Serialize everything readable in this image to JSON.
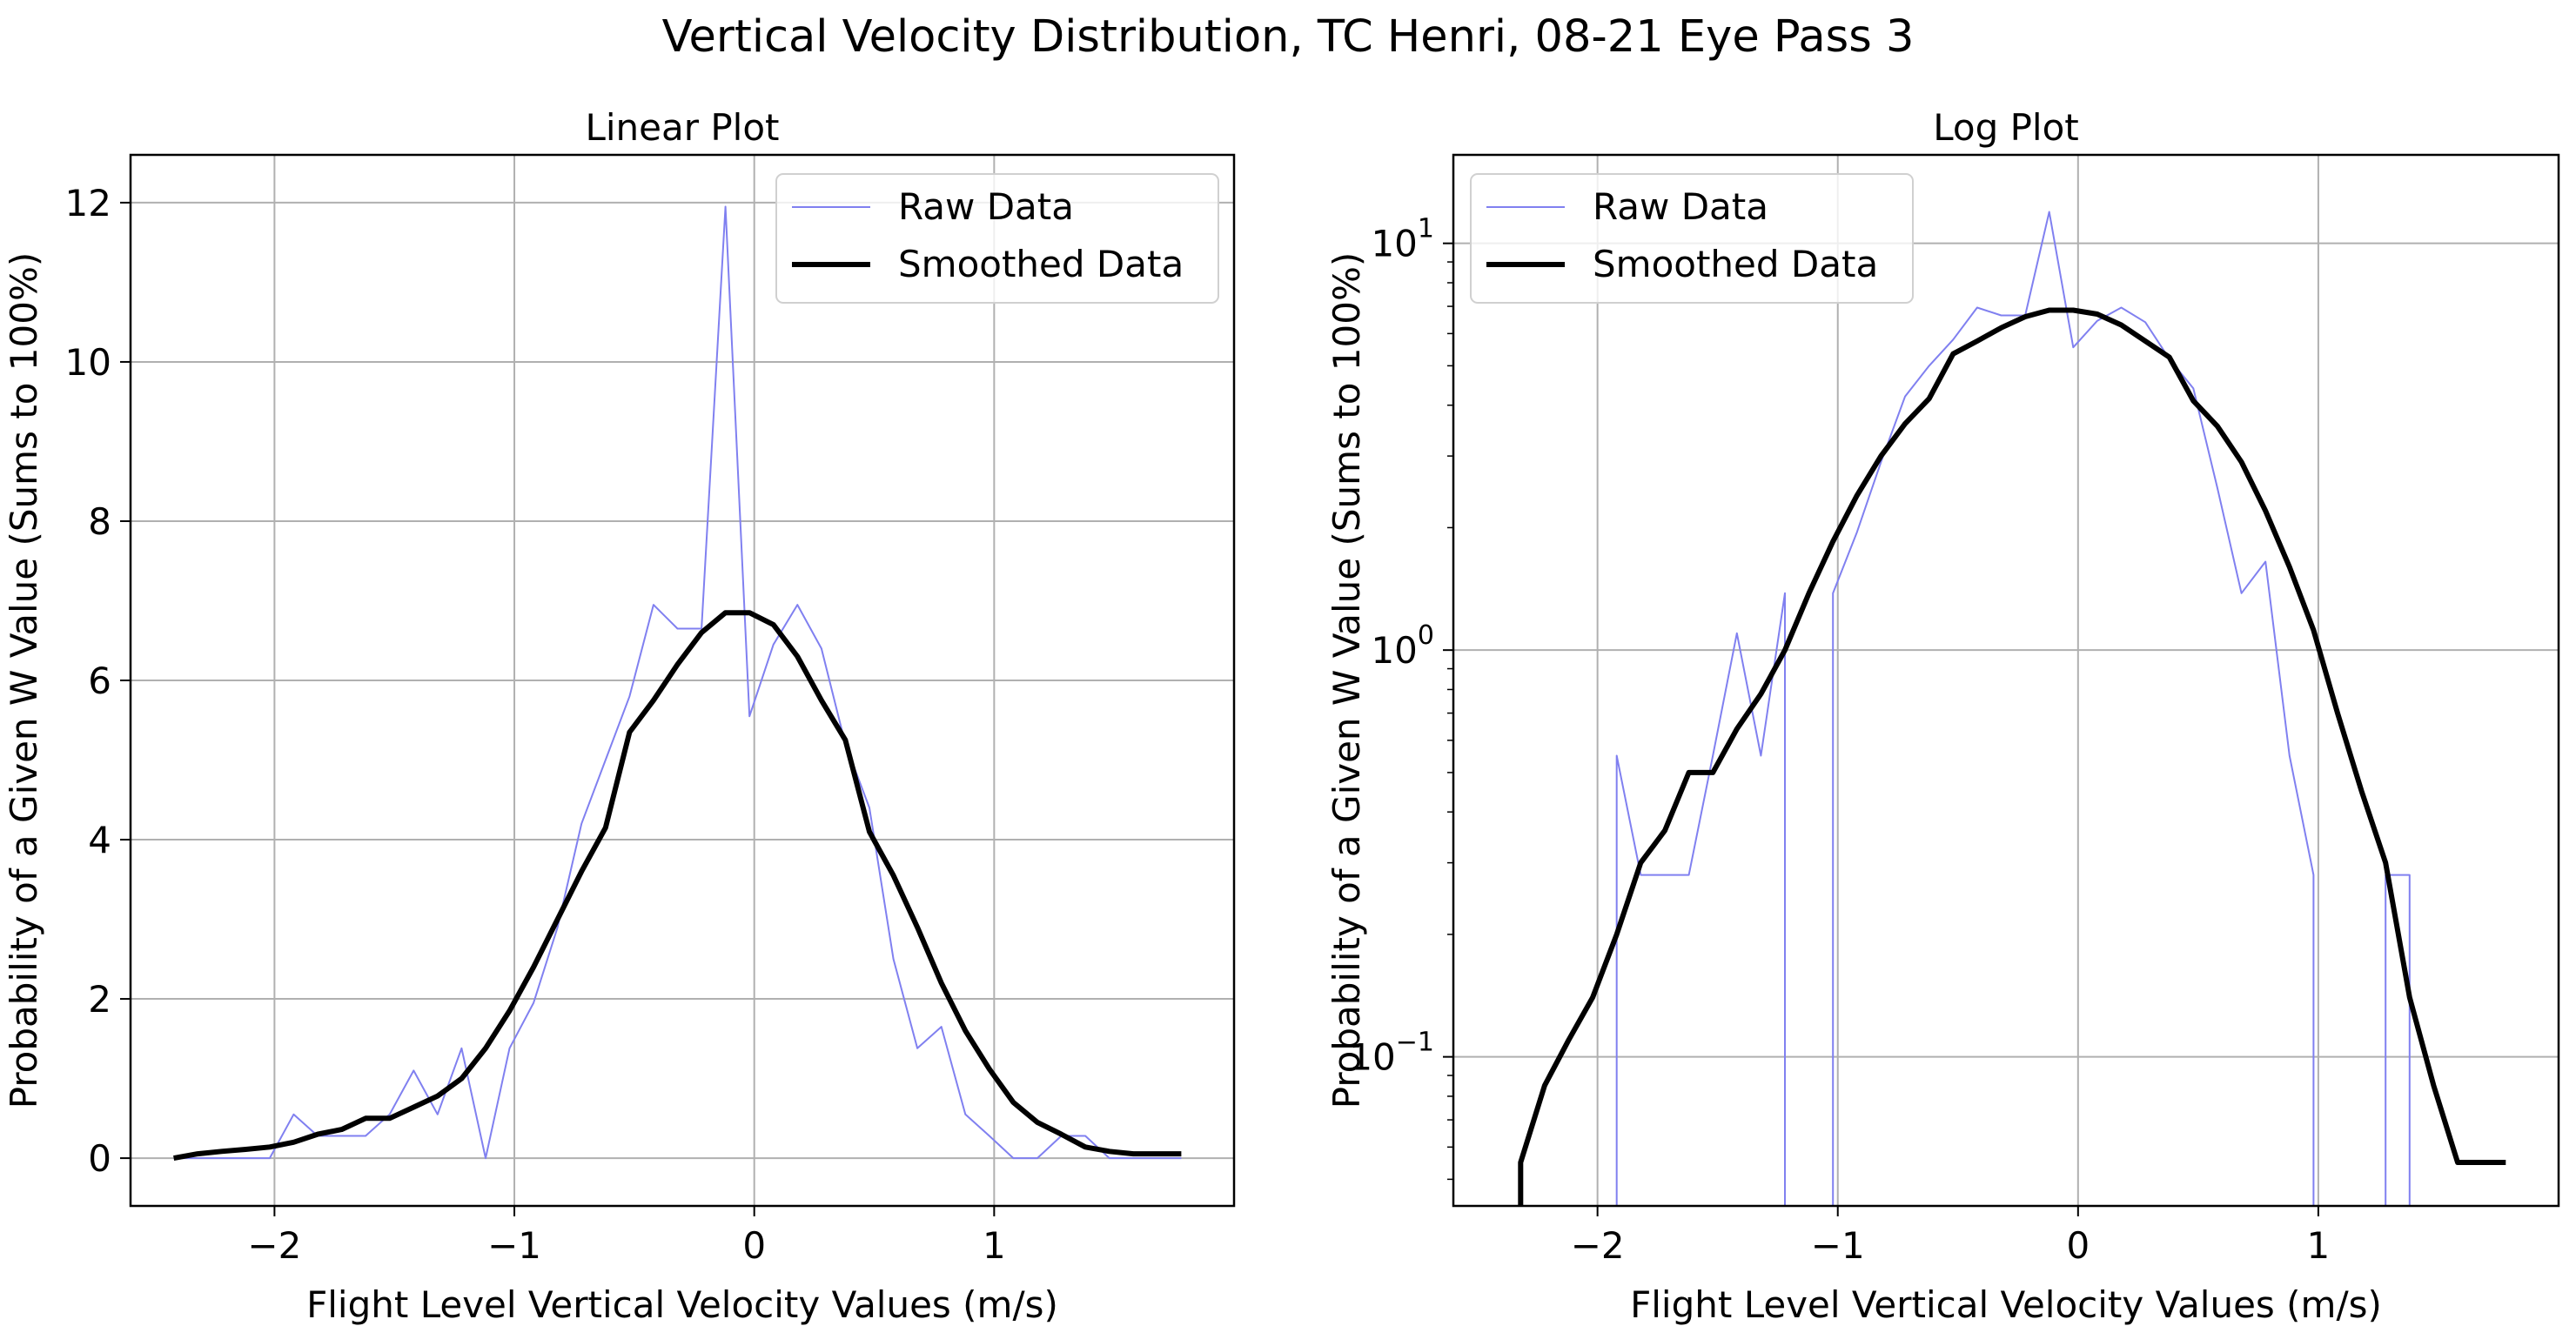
{
  "figure_title": "Vertical Velocity Distribution, TC Henri, 08-21 Eye Pass 3",
  "chart_data": [
    {
      "type": "line",
      "title": "Linear Plot",
      "xlabel": "Flight Level Vertical Velocity Values (m/s)",
      "ylabel": "Probability of a Given W Value (Sums to 100%)",
      "xlim": [
        -2.6,
        2.0
      ],
      "ylim": [
        -0.6,
        12.6
      ],
      "yscale": "linear",
      "grid": true,
      "legend_position": "upper right",
      "xticks": [
        {
          "v": -2,
          "label": "−2"
        },
        {
          "v": -1,
          "label": "−1"
        },
        {
          "v": 0,
          "label": "0"
        },
        {
          "v": 1,
          "label": "1"
        }
      ],
      "yticks": [
        {
          "v": 0,
          "label": "0"
        },
        {
          "v": 2,
          "label": "2"
        },
        {
          "v": 4,
          "label": "4"
        },
        {
          "v": 6,
          "label": "6"
        },
        {
          "v": 8,
          "label": "8"
        },
        {
          "v": 10,
          "label": "10"
        },
        {
          "v": 12,
          "label": "12"
        }
      ],
      "series": [
        {
          "name": "Raw Data",
          "color": "#8080f0",
          "width": 2,
          "x": [
            -2.42,
            -2.32,
            -2.22,
            -2.12,
            -2.02,
            -1.92,
            -1.82,
            -1.72,
            -1.62,
            -1.52,
            -1.42,
            -1.32,
            -1.22,
            -1.12,
            -1.02,
            -0.92,
            -0.82,
            -0.72,
            -0.62,
            -0.52,
            -0.42,
            -0.32,
            -0.22,
            -0.12,
            -0.02,
            0.08,
            0.18,
            0.28,
            0.38,
            0.48,
            0.58,
            0.68,
            0.78,
            0.88,
            0.98,
            1.08,
            1.18,
            1.28,
            1.38,
            1.48,
            1.58,
            1.68,
            1.78
          ],
          "y": [
            0.0,
            0.0,
            0.0,
            0.0,
            0.0,
            0.55,
            0.28,
            0.28,
            0.28,
            0.55,
            1.1,
            0.55,
            1.38,
            0.0,
            1.38,
            1.95,
            2.9,
            4.2,
            5.0,
            5.8,
            6.95,
            6.65,
            6.65,
            11.95,
            5.55,
            6.45,
            6.95,
            6.4,
            5.2,
            4.4,
            2.5,
            1.38,
            1.65,
            0.55,
            0.28,
            0.0,
            0.0,
            0.28,
            0.28,
            0.0,
            0.0,
            0.0,
            0.0
          ]
        },
        {
          "name": "Smoothed Data",
          "color": "#000000",
          "width": 6,
          "x": [
            -2.42,
            -2.32,
            -2.22,
            -2.12,
            -2.02,
            -1.92,
            -1.82,
            -1.72,
            -1.62,
            -1.52,
            -1.42,
            -1.32,
            -1.22,
            -1.12,
            -1.02,
            -0.92,
            -0.82,
            -0.72,
            -0.62,
            -0.52,
            -0.42,
            -0.32,
            -0.22,
            -0.12,
            -0.02,
            0.08,
            0.18,
            0.28,
            0.38,
            0.48,
            0.58,
            0.68,
            0.78,
            0.88,
            0.98,
            1.08,
            1.18,
            1.28,
            1.38,
            1.48,
            1.58,
            1.68,
            1.78
          ],
          "y": [
            0.0,
            0.055,
            0.085,
            0.11,
            0.14,
            0.2,
            0.3,
            0.36,
            0.5,
            0.5,
            0.64,
            0.78,
            1.0,
            1.38,
            1.85,
            2.4,
            3.0,
            3.6,
            4.15,
            5.35,
            5.75,
            6.2,
            6.6,
            6.85,
            6.85,
            6.7,
            6.3,
            5.75,
            5.25,
            4.1,
            3.55,
            2.9,
            2.2,
            1.6,
            1.12,
            0.7,
            0.45,
            0.3,
            0.14,
            0.085,
            0.055,
            0.055,
            0.055
          ]
        }
      ]
    },
    {
      "type": "line",
      "title": "Log Plot",
      "xlabel": "Flight Level Vertical Velocity Values (m/s)",
      "ylabel": "Probability of a Given W Value (Sums to 100%)",
      "xlim": [
        -2.6,
        2.0
      ],
      "ylim": [
        0.043,
        16.5
      ],
      "yscale": "log",
      "grid": true,
      "legend_position": "upper left",
      "xticks": [
        {
          "v": -2,
          "label": "−2"
        },
        {
          "v": -1,
          "label": "−1"
        },
        {
          "v": 0,
          "label": "0"
        },
        {
          "v": 1,
          "label": "1"
        }
      ],
      "yticks": [
        {
          "v": 0.1,
          "base": "10",
          "exp": "−1"
        },
        {
          "v": 1,
          "base": "10",
          "exp": "0"
        },
        {
          "v": 10,
          "base": "10",
          "exp": "1"
        }
      ],
      "series": [
        {
          "name": "Raw Data",
          "color": "#8080f0",
          "width": 2,
          "x": [
            -1.92,
            -1.92,
            -1.82,
            -1.72,
            -1.62,
            -1.52,
            -1.42,
            -1.32,
            -1.22,
            -1.22,
            -1.02,
            -1.02,
            -0.92,
            -0.82,
            -0.72,
            -0.62,
            -0.52,
            -0.42,
            -0.32,
            -0.22,
            -0.12,
            -0.02,
            0.08,
            0.18,
            0.28,
            0.38,
            0.48,
            0.58,
            0.68,
            0.78,
            0.88,
            0.98,
            0.98,
            1.28,
            1.28,
            1.38,
            1.38
          ],
          "y": [
            0.043,
            0.55,
            0.28,
            0.28,
            0.28,
            0.55,
            1.1,
            0.55,
            1.38,
            0.043,
            0.043,
            1.38,
            1.95,
            2.9,
            4.2,
            5.0,
            5.8,
            6.95,
            6.65,
            6.65,
            11.95,
            5.55,
            6.45,
            6.95,
            6.4,
            5.2,
            4.4,
            2.5,
            1.38,
            1.65,
            0.55,
            0.28,
            0.043,
            0.043,
            0.28,
            0.28,
            0.043
          ]
        },
        {
          "name": "Smoothed Data",
          "color": "#000000",
          "width": 6,
          "x": [
            -2.32,
            -2.32,
            -2.22,
            -2.12,
            -2.02,
            -1.92,
            -1.82,
            -1.72,
            -1.62,
            -1.52,
            -1.42,
            -1.32,
            -1.22,
            -1.12,
            -1.02,
            -0.92,
            -0.82,
            -0.72,
            -0.62,
            -0.52,
            -0.42,
            -0.32,
            -0.22,
            -0.12,
            -0.02,
            0.08,
            0.18,
            0.28,
            0.38,
            0.48,
            0.58,
            0.68,
            0.78,
            0.88,
            0.98,
            1.08,
            1.18,
            1.28,
            1.38,
            1.48,
            1.58,
            1.68,
            1.78
          ],
          "y": [
            0.043,
            0.055,
            0.085,
            0.11,
            0.14,
            0.2,
            0.3,
            0.36,
            0.5,
            0.5,
            0.64,
            0.78,
            1.0,
            1.38,
            1.85,
            2.4,
            3.0,
            3.6,
            4.15,
            5.35,
            5.75,
            6.2,
            6.6,
            6.85,
            6.85,
            6.7,
            6.3,
            5.75,
            5.25,
            4.1,
            3.55,
            2.9,
            2.2,
            1.6,
            1.12,
            0.7,
            0.45,
            0.3,
            0.14,
            0.085,
            0.055,
            0.055,
            0.055
          ]
        }
      ]
    }
  ]
}
